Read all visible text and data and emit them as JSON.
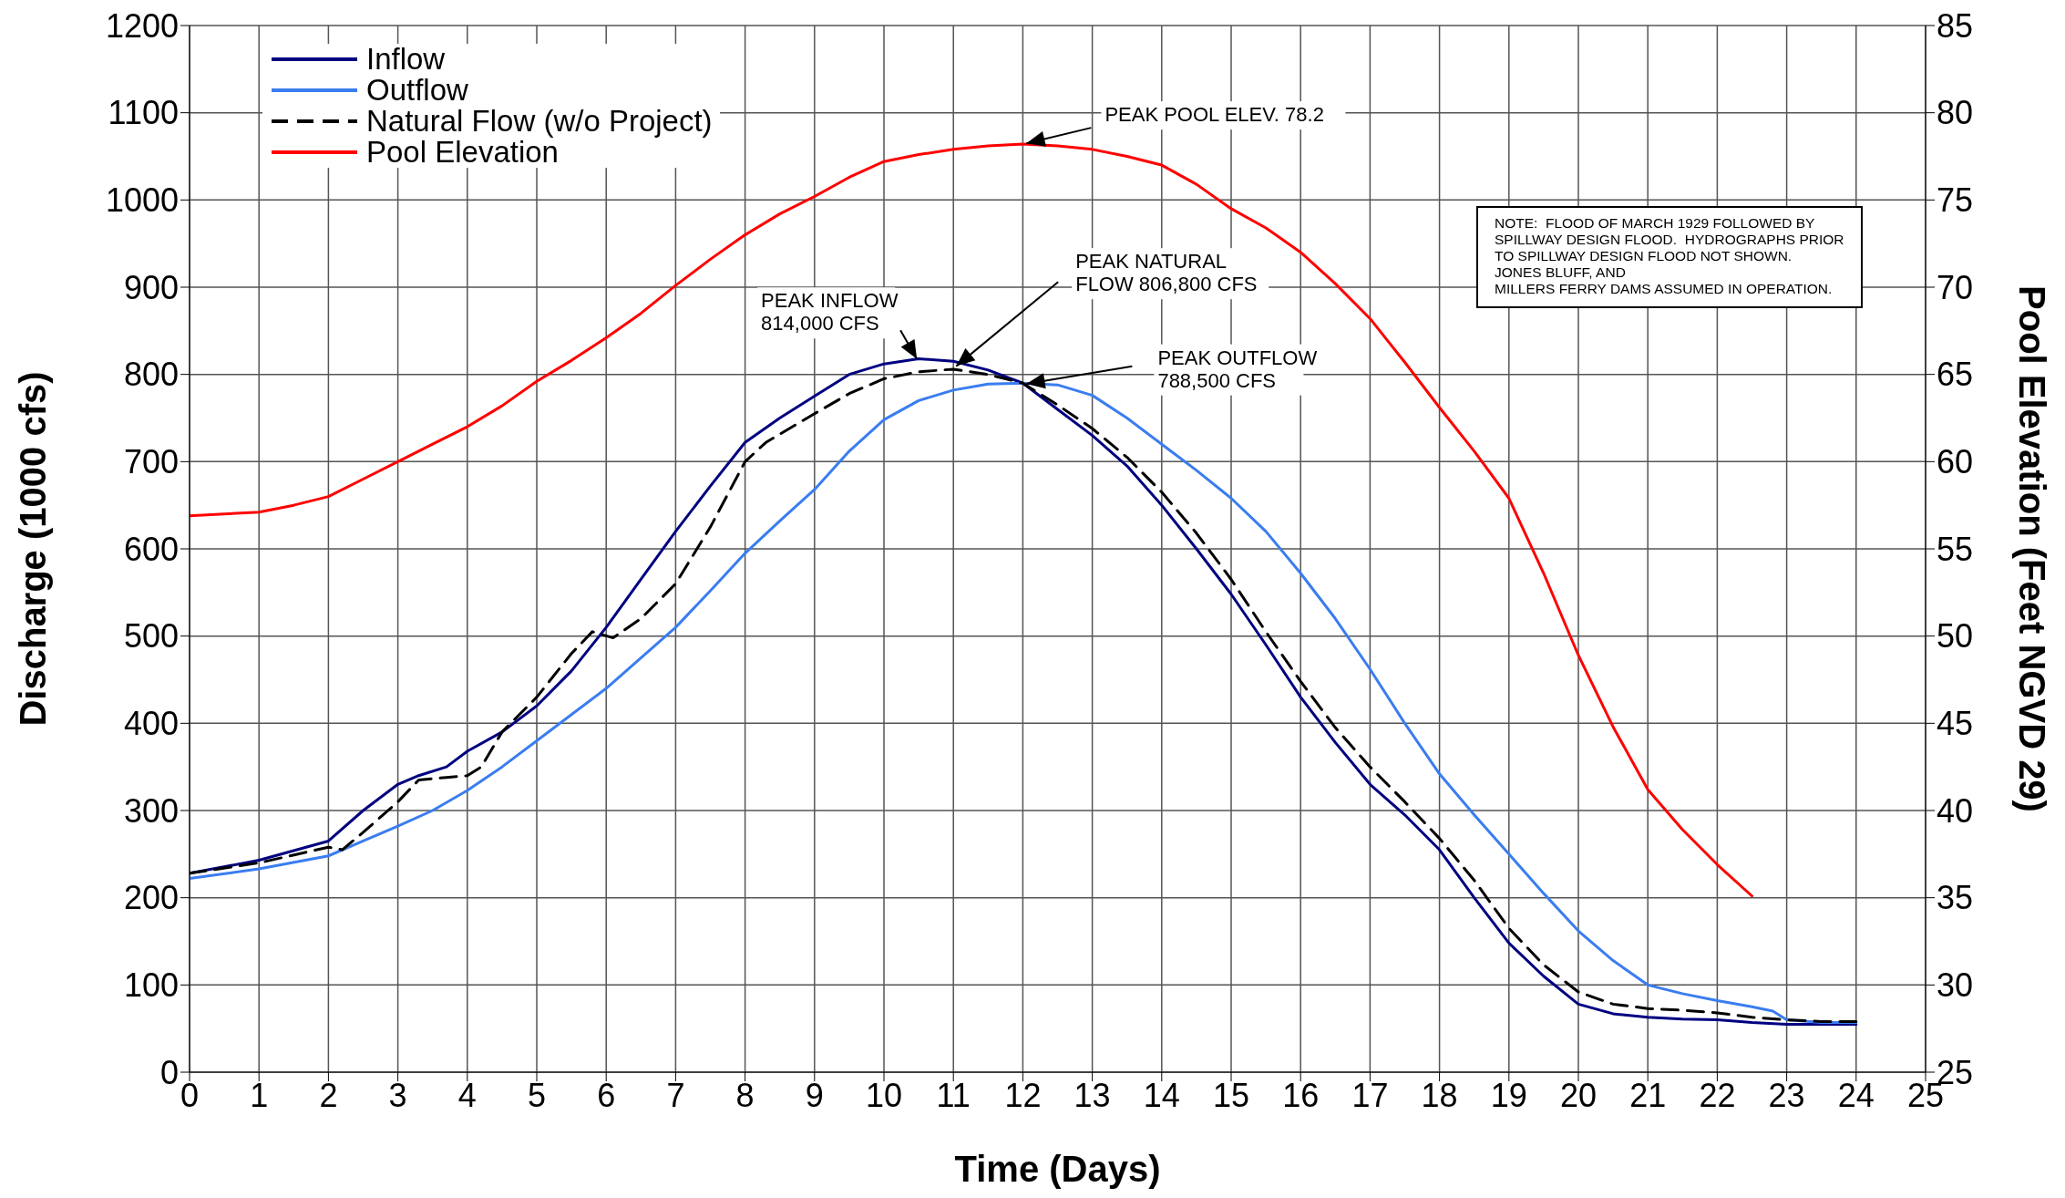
{
  "chart_data": {
    "type": "line",
    "xlabel": "Time (Days)",
    "ylabel": "Discharge (1000 cfs)",
    "y2label": "Pool Elevation (Feet NGVD 29)",
    "xlim": [
      0,
      25
    ],
    "xticks": [
      0,
      1,
      2,
      3,
      4,
      5,
      6,
      7,
      8,
      9,
      10,
      11,
      12,
      13,
      14,
      15,
      16,
      17,
      18,
      19,
      20,
      21,
      22,
      23,
      24,
      25
    ],
    "ylim": [
      0,
      1200
    ],
    "yticks": [
      0,
      100,
      200,
      300,
      400,
      500,
      600,
      700,
      800,
      900,
      1000,
      1100,
      1200
    ],
    "y2lim": [
      25,
      85
    ],
    "y2ticks": [
      25,
      30,
      35,
      40,
      45,
      50,
      55,
      60,
      65,
      70,
      75,
      80,
      85
    ],
    "grid": true,
    "legend": "top left",
    "marker": "none",
    "series": [
      {
        "name": "Inflow",
        "color": "#000080",
        "x": [
          0,
          1,
          2,
          2.5,
          3,
          3.3,
          3.7,
          4,
          4.5,
          5,
          5.5,
          6,
          6.5,
          7,
          7.5,
          8,
          8.5,
          9,
          9.5,
          10,
          10.5,
          11,
          11.5,
          12,
          12.5,
          13,
          13.5,
          14,
          14.5,
          15,
          15.5,
          16,
          16.5,
          17,
          17.5,
          18,
          18.5,
          19,
          19.5,
          20,
          20.5,
          21,
          21.5,
          22,
          22.5,
          23,
          23.5,
          24
        ],
        "values": [
          228,
          243,
          265,
          300,
          330,
          340,
          350,
          368,
          390,
          420,
          460,
          510,
          565,
          620,
          672,
          722,
          750,
          775,
          800,
          812,
          818,
          815,
          805,
          790,
          760,
          730,
          695,
          650,
          600,
          548,
          490,
          430,
          378,
          330,
          295,
          255,
          200,
          148,
          110,
          78,
          67,
          63,
          61,
          60,
          57,
          55,
          55,
          55
        ]
      },
      {
        "name": "Outflow",
        "color": "#3a7df0",
        "x": [
          0,
          1,
          2,
          2.5,
          3,
          3.5,
          4,
          4.5,
          5,
          5.5,
          6,
          6.5,
          7,
          7.5,
          8,
          8.5,
          9,
          9.5,
          10,
          10.5,
          11,
          11.5,
          12,
          12.5,
          13,
          13.5,
          14,
          14.5,
          15,
          15.5,
          16,
          16.5,
          17,
          17.5,
          18,
          18.5,
          19,
          19.5,
          20,
          20.5,
          21,
          21.5,
          22,
          22.5,
          22.8,
          23,
          23.5,
          24
        ],
        "values": [
          222,
          233,
          248,
          265,
          282,
          300,
          323,
          350,
          380,
          410,
          440,
          475,
          510,
          552,
          595,
          632,
          668,
          712,
          748,
          770,
          782,
          789,
          790,
          788,
          776,
          750,
          720,
          690,
          658,
          620,
          572,
          520,
          462,
          400,
          342,
          295,
          250,
          205,
          162,
          128,
          100,
          90,
          82,
          75,
          70,
          60,
          57,
          57
        ]
      },
      {
        "name": "Natural Flow (w/o Project)",
        "color": "#000000",
        "line_style": "dashed",
        "x": [
          0,
          1,
          2,
          2.2,
          2.5,
          3,
          3.3,
          3.7,
          4,
          4.2,
          4.5,
          5,
          5.5,
          5.8,
          6.1,
          6.5,
          7,
          7.5,
          8,
          8.3,
          9,
          9.5,
          10,
          10.5,
          11,
          11.5,
          12,
          12.5,
          13,
          13.5,
          14,
          14.5,
          15,
          15.5,
          16,
          16.5,
          17,
          17.5,
          18,
          18.5,
          19,
          19.5,
          20,
          20.5,
          21,
          21.5,
          22,
          22.5,
          23,
          23.5,
          24
        ],
        "values": [
          228,
          240,
          258,
          255,
          275,
          310,
          335,
          338,
          340,
          350,
          390,
          430,
          480,
          505,
          498,
          520,
          560,
          625,
          700,
          722,
          755,
          778,
          795,
          803,
          806,
          800,
          790,
          765,
          738,
          705,
          665,
          618,
          565,
          505,
          448,
          395,
          350,
          310,
          268,
          220,
          165,
          123,
          92,
          78,
          73,
          71,
          68,
          63,
          60,
          58,
          58
        ]
      },
      {
        "name": "Pool Elevation",
        "color": "#ff0000",
        "axis": "y2",
        "x": [
          0,
          0.5,
          1,
          1.5,
          2,
          2.5,
          3,
          3.5,
          4,
          4.5,
          5,
          5.5,
          6,
          6.5,
          7,
          7.5,
          8,
          8.5,
          9,
          9.5,
          10,
          10.5,
          11,
          11.5,
          12,
          12.5,
          13,
          13.5,
          14,
          14.5,
          15,
          15.5,
          16,
          16.5,
          17,
          17.5,
          18,
          18.5,
          19,
          19.5,
          20,
          20.5,
          21,
          21.5,
          22,
          22.5
        ],
        "values": [
          56.9,
          57,
          57.1,
          57.5,
          58,
          59,
          60,
          61,
          62,
          63.2,
          64.6,
          65.8,
          67.1,
          68.5,
          70.1,
          71.6,
          73,
          74.2,
          75.2,
          76.3,
          77.2,
          77.6,
          77.9,
          78.1,
          78.2,
          78.1,
          77.9,
          77.5,
          77,
          75.9,
          74.5,
          73.4,
          72,
          70.2,
          68.2,
          65.7,
          63.1,
          60.6,
          57.9,
          53.6,
          48.9,
          44.8,
          41.2,
          38.9,
          36.9,
          35.1
        ]
      }
    ],
    "annotations": [
      {
        "text": "PEAK POOL ELEV. 78.2",
        "x": 12,
        "y": 1064
      },
      {
        "text": "PEAK INFLOW\n814,000 CFS",
        "x": 10.5,
        "y": 814
      },
      {
        "text": "PEAK NATURAL\nFLOW 806,800 CFS",
        "x": 11,
        "y": 806.8
      },
      {
        "text": "PEAK OUTFLOW\n788,500 CFS",
        "x": 12,
        "y": 788.5
      },
      "NOTE:  FLOOD OF MARCH 1929 FOLLOWED BY\nSPILLWAY DESIGN FLOOD.  HYDROGRAPHS PRIOR\nTO SPILLWAY DESIGN FLOOD NOT SHOWN.\nJONES BLUFF, AND\nMILLERS FERRY DAMS ASSUMED IN OPERATION."
    ]
  }
}
